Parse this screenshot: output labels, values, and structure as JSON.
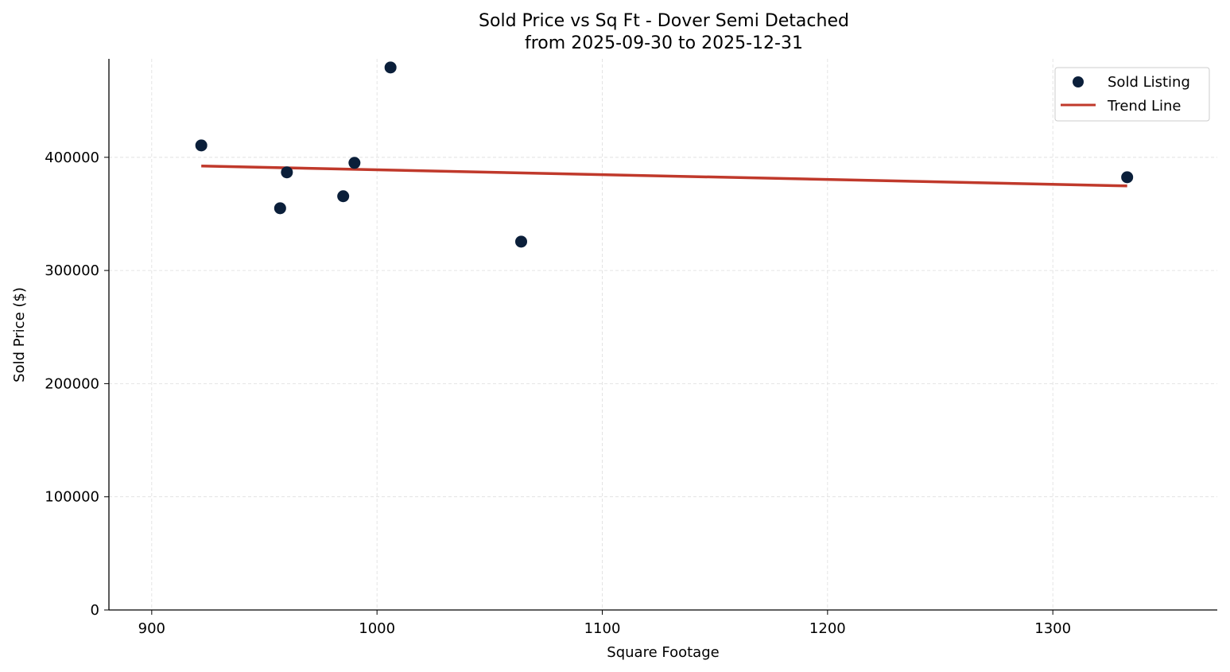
{
  "chart_data": {
    "type": "scatter",
    "title": "Sold Price vs Sq Ft - Dover Semi Detached",
    "subtitle": "from 2025-09-30 to 2025-12-31",
    "xlabel": "Square Footage",
    "ylabel": "Sold Price ($)",
    "xlim": [
      881,
      1373
    ],
    "ylim": [
      0,
      487000
    ],
    "xticks": [
      900,
      1000,
      1100,
      1200,
      1300
    ],
    "yticks": [
      0,
      100000,
      200000,
      300000,
      400000
    ],
    "grid": true,
    "legend": {
      "placement": "top-right",
      "entries": [
        "Sold Listing",
        "Trend Line"
      ]
    },
    "colors": {
      "points": "#0b1f3a",
      "trend": "#c0392b"
    },
    "series": [
      {
        "name": "Sold Listing",
        "type": "scatter",
        "x": [
          922,
          957,
          960,
          985,
          990,
          1006,
          1064,
          1333
        ],
        "y": [
          410500,
          355000,
          386700,
          365600,
          395100,
          479400,
          325500,
          382400
        ]
      },
      {
        "name": "Trend Line",
        "type": "line",
        "x": [
          922,
          1333
        ],
        "y": [
          392300,
          374700
        ]
      }
    ]
  }
}
